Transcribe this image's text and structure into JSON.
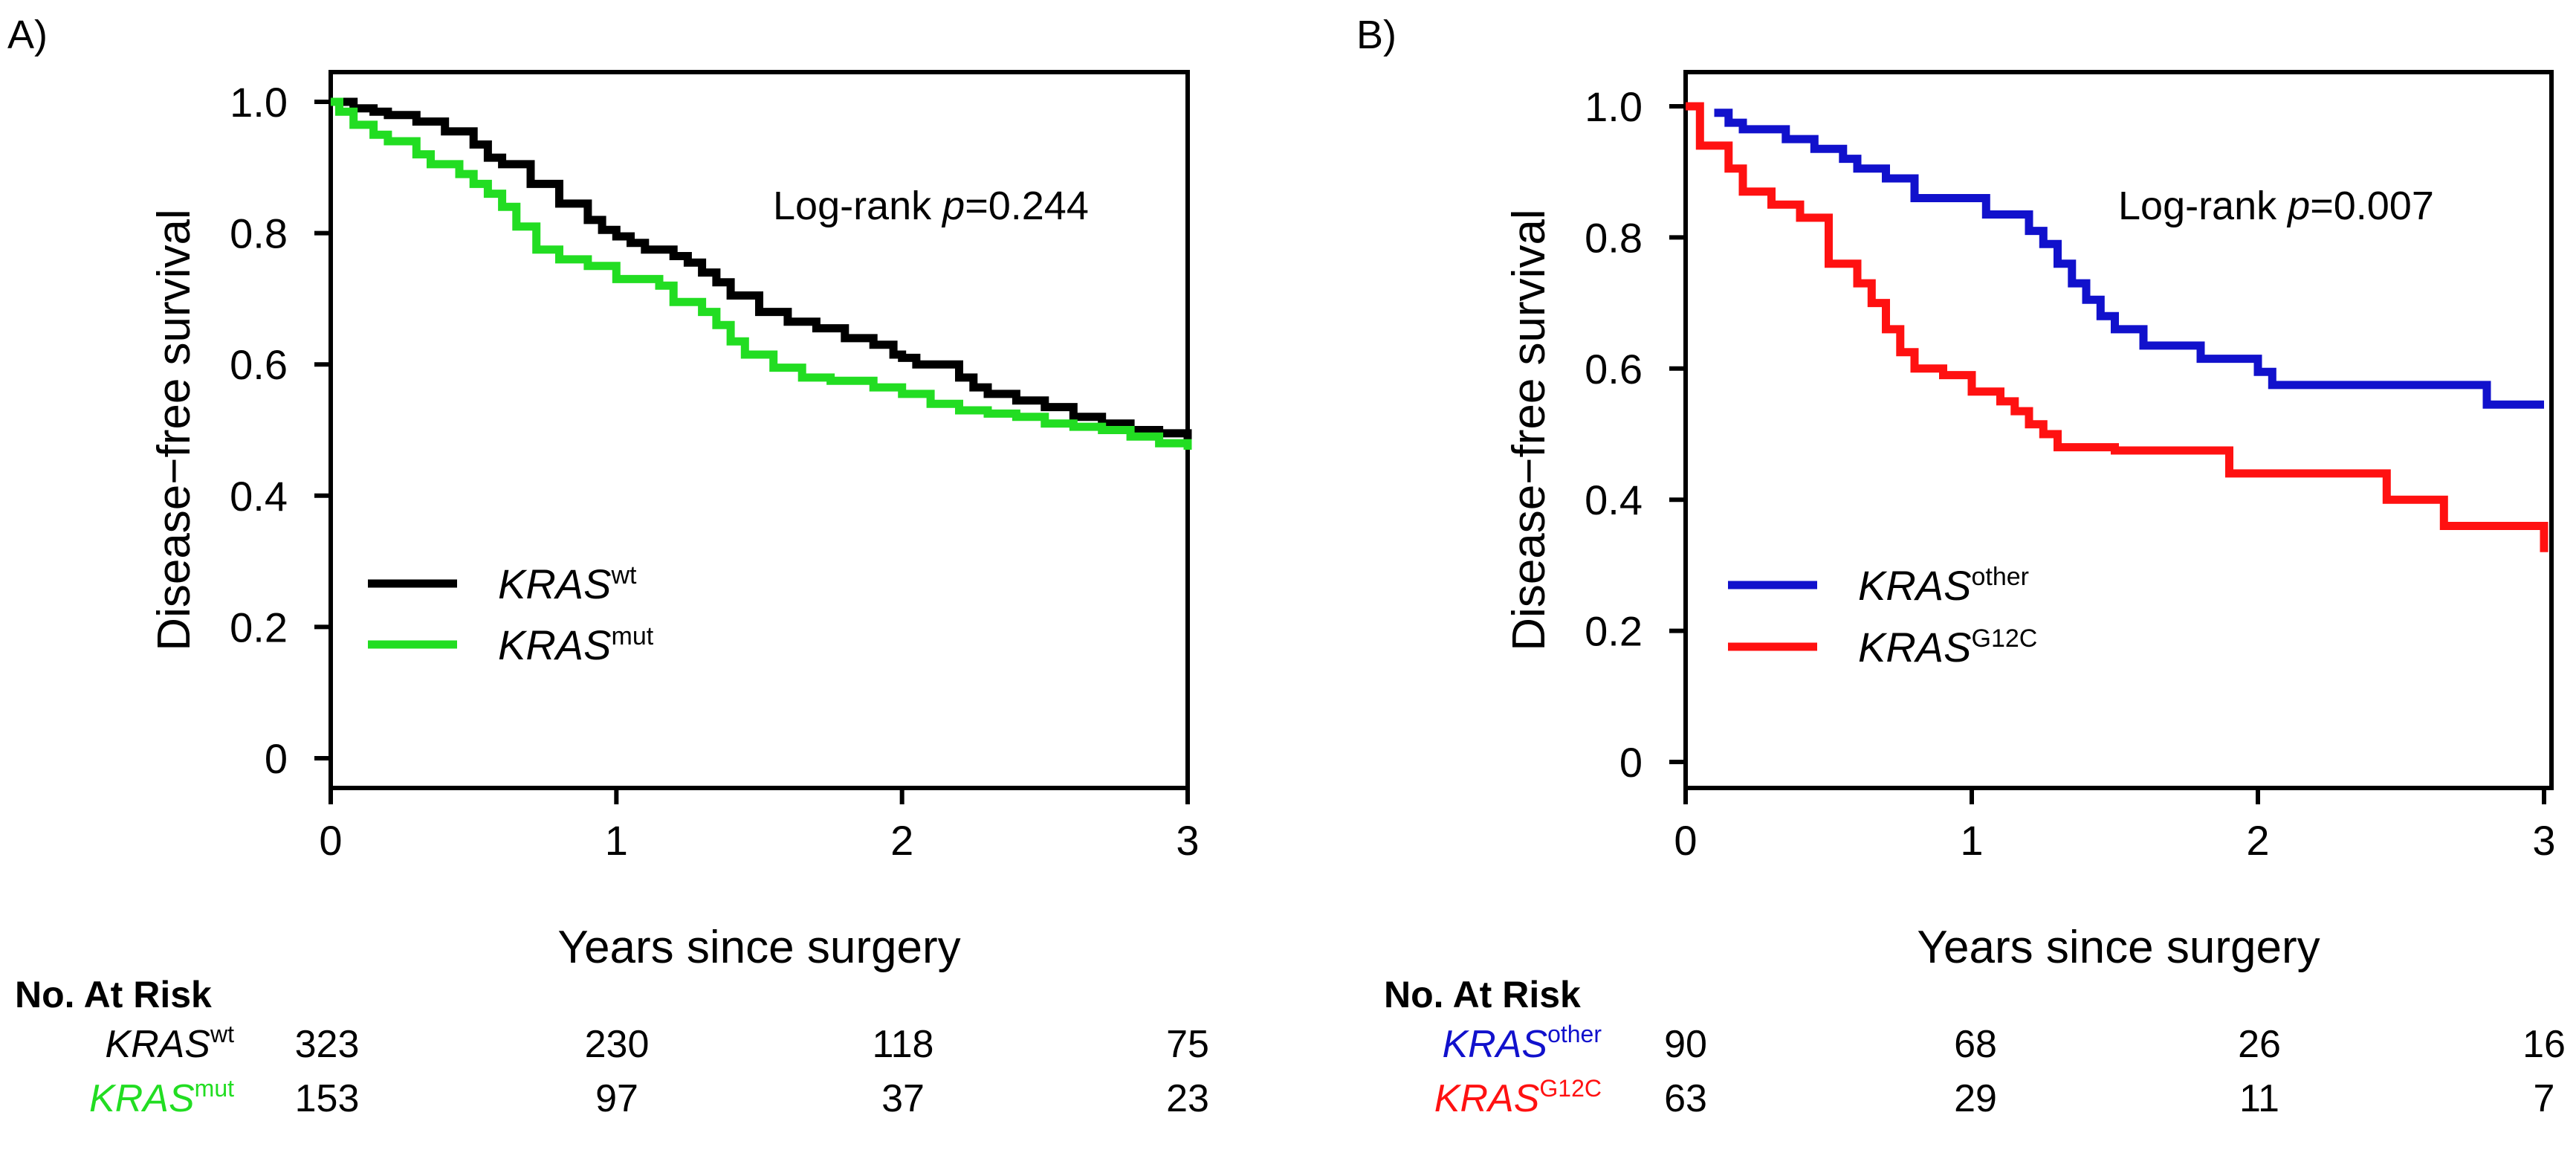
{
  "chart_data": [
    {
      "panel_label": "A)",
      "type": "line",
      "subtype": "kaplan-meier",
      "xlabel": "Years since surgery",
      "ylabel": "Disease−free survival",
      "xlim": [
        0,
        3
      ],
      "ylim": [
        0,
        1
      ],
      "xticks": [
        "0",
        "1",
        "2",
        "3"
      ],
      "yticks": [
        "0",
        "0.2",
        "0.4",
        "0.6",
        "0.8",
        "1.0"
      ],
      "annotation": {
        "prefix": "Log-rank ",
        "p_symbol": "p",
        "value": "=0.244"
      },
      "legend_position": "center-left",
      "series": [
        {
          "name_base": "KRAS",
          "name_sup": "wt",
          "color": "#000000",
          "points": [
            [
              0,
              1.0
            ],
            [
              0.04,
              1.0
            ],
            [
              0.08,
              0.99
            ],
            [
              0.15,
              0.985
            ],
            [
              0.2,
              0.98
            ],
            [
              0.3,
              0.97
            ],
            [
              0.4,
              0.955
            ],
            [
              0.5,
              0.935
            ],
            [
              0.55,
              0.915
            ],
            [
              0.6,
              0.905
            ],
            [
              0.7,
              0.875
            ],
            [
              0.8,
              0.845
            ],
            [
              0.9,
              0.82
            ],
            [
              0.95,
              0.805
            ],
            [
              1.0,
              0.795
            ],
            [
              1.05,
              0.785
            ],
            [
              1.1,
              0.775
            ],
            [
              1.2,
              0.765
            ],
            [
              1.25,
              0.755
            ],
            [
              1.3,
              0.74
            ],
            [
              1.35,
              0.725
            ],
            [
              1.4,
              0.705
            ],
            [
              1.5,
              0.68
            ],
            [
              1.6,
              0.665
            ],
            [
              1.7,
              0.655
            ],
            [
              1.8,
              0.64
            ],
            [
              1.9,
              0.63
            ],
            [
              1.97,
              0.615
            ],
            [
              2.0,
              0.61
            ],
            [
              2.05,
              0.6
            ],
            [
              2.14,
              0.6
            ],
            [
              2.2,
              0.58
            ],
            [
              2.25,
              0.565
            ],
            [
              2.3,
              0.555
            ],
            [
              2.4,
              0.545
            ],
            [
              2.5,
              0.535
            ],
            [
              2.6,
              0.52
            ],
            [
              2.7,
              0.51
            ],
            [
              2.8,
              0.5
            ],
            [
              2.9,
              0.495
            ],
            [
              3.0,
              0.485
            ]
          ]
        },
        {
          "name_base": "KRAS",
          "name_sup": "mut",
          "color": "#22dd22",
          "points": [
            [
              0,
              1.0
            ],
            [
              0.03,
              0.985
            ],
            [
              0.08,
              0.965
            ],
            [
              0.15,
              0.95
            ],
            [
              0.2,
              0.94
            ],
            [
              0.3,
              0.92
            ],
            [
              0.35,
              0.905
            ],
            [
              0.45,
              0.89
            ],
            [
              0.5,
              0.875
            ],
            [
              0.55,
              0.86
            ],
            [
              0.6,
              0.84
            ],
            [
              0.65,
              0.81
            ],
            [
              0.72,
              0.775
            ],
            [
              0.8,
              0.76
            ],
            [
              0.9,
              0.75
            ],
            [
              1.0,
              0.73
            ],
            [
              1.15,
              0.72
            ],
            [
              1.2,
              0.695
            ],
            [
              1.3,
              0.68
            ],
            [
              1.35,
              0.66
            ],
            [
              1.4,
              0.635
            ],
            [
              1.45,
              0.615
            ],
            [
              1.55,
              0.595
            ],
            [
              1.65,
              0.58
            ],
            [
              1.75,
              0.575
            ],
            [
              1.85,
              0.575
            ],
            [
              1.9,
              0.565
            ],
            [
              2.0,
              0.555
            ],
            [
              2.1,
              0.54
            ],
            [
              2.2,
              0.53
            ],
            [
              2.3,
              0.525
            ],
            [
              2.4,
              0.52
            ],
            [
              2.5,
              0.51
            ],
            [
              2.6,
              0.505
            ],
            [
              2.7,
              0.5
            ],
            [
              2.8,
              0.49
            ],
            [
              2.9,
              0.48
            ],
            [
              3.0,
              0.47
            ]
          ]
        }
      ],
      "risk_table": {
        "header": "No. At Risk",
        "rows": [
          {
            "label_base": "KRAS",
            "label_sup": "wt",
            "color": "#000000",
            "values": [
              "323",
              "230",
              "118",
              "75"
            ]
          },
          {
            "label_base": "KRAS",
            "label_sup": "mut",
            "color": "#22dd22",
            "values": [
              "153",
              "97",
              "37",
              "23"
            ]
          }
        ]
      }
    },
    {
      "panel_label": "B)",
      "type": "line",
      "subtype": "kaplan-meier",
      "xlabel": "Years since surgery",
      "ylabel": "Disease−free survival",
      "xlim": [
        0,
        3
      ],
      "ylim": [
        0,
        1
      ],
      "xticks": [
        "0",
        "1",
        "2",
        "3"
      ],
      "yticks": [
        "0",
        "0.2",
        "0.4",
        "0.6",
        "0.8",
        "1.0"
      ],
      "annotation": {
        "prefix": "Log-rank ",
        "p_symbol": "p",
        "value": "=0.007"
      },
      "legend_position": "lower-left",
      "series": [
        {
          "name_base": "KRAS",
          "name_sup": "other",
          "color": "#1111cc",
          "points": [
            [
              0.1,
              0.99
            ],
            [
              0.15,
              0.975
            ],
            [
              0.2,
              0.965
            ],
            [
              0.35,
              0.95
            ],
            [
              0.45,
              0.935
            ],
            [
              0.55,
              0.92
            ],
            [
              0.6,
              0.905
            ],
            [
              0.7,
              0.89
            ],
            [
              0.8,
              0.86
            ],
            [
              1.05,
              0.835
            ],
            [
              1.2,
              0.81
            ],
            [
              1.25,
              0.79
            ],
            [
              1.3,
              0.76
            ],
            [
              1.35,
              0.73
            ],
            [
              1.4,
              0.705
            ],
            [
              1.45,
              0.68
            ],
            [
              1.5,
              0.66
            ],
            [
              1.6,
              0.635
            ],
            [
              1.8,
              0.615
            ],
            [
              2.0,
              0.595
            ],
            [
              2.05,
              0.575
            ],
            [
              2.8,
              0.545
            ],
            [
              3.0,
              0.545
            ]
          ]
        },
        {
          "name_base": "KRAS",
          "name_sup": "G12C",
          "color": "#ff1111",
          "points": [
            [
              0,
              1.0
            ],
            [
              0.05,
              0.94
            ],
            [
              0.15,
              0.905
            ],
            [
              0.2,
              0.87
            ],
            [
              0.3,
              0.85
            ],
            [
              0.4,
              0.83
            ],
            [
              0.5,
              0.76
            ],
            [
              0.6,
              0.73
            ],
            [
              0.65,
              0.7
            ],
            [
              0.7,
              0.66
            ],
            [
              0.75,
              0.625
            ],
            [
              0.8,
              0.6
            ],
            [
              0.9,
              0.59
            ],
            [
              1.0,
              0.565
            ],
            [
              1.1,
              0.55
            ],
            [
              1.15,
              0.535
            ],
            [
              1.2,
              0.515
            ],
            [
              1.25,
              0.5
            ],
            [
              1.3,
              0.48
            ],
            [
              1.5,
              0.475
            ],
            [
              1.9,
              0.44
            ],
            [
              2.45,
              0.4
            ],
            [
              2.65,
              0.36
            ],
            [
              3.0,
              0.32
            ]
          ]
        }
      ],
      "risk_table": {
        "header": "No. At Risk",
        "rows": [
          {
            "label_base": "KRAS",
            "label_sup": "other",
            "color": "#1111cc",
            "values": [
              "90",
              "68",
              "26",
              "16"
            ]
          },
          {
            "label_base": "KRAS",
            "label_sup": "G12C",
            "color": "#ff1111",
            "values": [
              "63",
              "29",
              "11",
              "7"
            ]
          }
        ]
      }
    }
  ]
}
